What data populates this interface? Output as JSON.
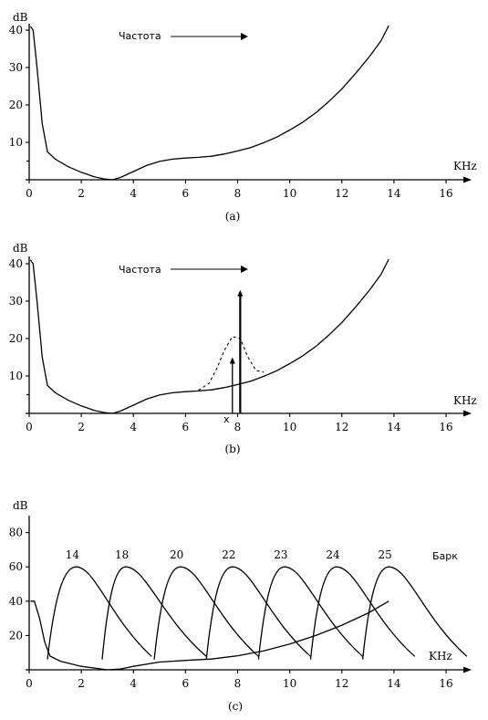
{
  "chart_data": [
    {
      "id": "a",
      "type": "line",
      "caption": "(a)",
      "ylabel": "dB",
      "xlabel": "KHz",
      "annotation": "Частота",
      "xlim": [
        0,
        16
      ],
      "ylim": [
        0,
        42
      ],
      "x_ticks": [
        0,
        2,
        4,
        6,
        8,
        10,
        12,
        14,
        16
      ],
      "y_ticks": [
        10,
        20,
        30,
        40
      ],
      "series": [
        {
          "x": [
            0.05,
            0.15,
            0.3,
            0.5,
            0.7,
            1.0,
            1.5,
            2.0,
            2.5,
            2.9,
            3.2,
            3.5,
            4.0,
            4.5,
            5.0,
            5.5,
            6.0,
            6.5,
            7.0,
            7.5,
            8.0,
            8.5,
            9.0,
            9.5,
            10.0,
            10.5,
            11.0,
            11.5,
            12.0,
            12.5,
            13.0,
            13.5,
            13.8
          ],
          "y": [
            41,
            40,
            30,
            15,
            7.5,
            5.5,
            3.5,
            2.0,
            0.8,
            0.2,
            0.0,
            0.6,
            2.2,
            3.8,
            4.9,
            5.5,
            5.8,
            6.0,
            6.3,
            6.9,
            7.7,
            8.6,
            9.9,
            11.4,
            13.3,
            15.4,
            17.9,
            20.9,
            24.3,
            28.2,
            32.4,
            37.1,
            41.2
          ]
        }
      ]
    },
    {
      "id": "b",
      "type": "line",
      "caption": "(b)",
      "ylabel": "dB",
      "xlabel": "KHz",
      "annotation": "Частота",
      "marker_label": "x",
      "xlim": [
        0,
        16
      ],
      "ylim": [
        0,
        42
      ],
      "x_ticks": [
        0,
        2,
        4,
        6,
        8,
        10,
        12,
        14,
        16
      ],
      "y_ticks": [
        10,
        20,
        30,
        40
      ],
      "series": [
        {
          "x": [
            0.05,
            0.15,
            0.3,
            0.5,
            0.7,
            1.0,
            1.5,
            2.0,
            2.5,
            2.9,
            3.2,
            3.5,
            4.0,
            4.5,
            5.0,
            5.5,
            6.0,
            6.5,
            7.0,
            7.5,
            8.0,
            8.5,
            9.0,
            9.5,
            10.0,
            10.5,
            11.0,
            11.5,
            12.0,
            12.5,
            13.0,
            13.5,
            13.8
          ],
          "y": [
            41,
            40,
            30,
            15,
            7.5,
            5.5,
            3.5,
            2.0,
            0.8,
            0.2,
            0.0,
            0.6,
            2.2,
            3.8,
            4.9,
            5.5,
            5.8,
            6.0,
            6.3,
            6.9,
            7.7,
            8.6,
            9.9,
            11.4,
            13.3,
            15.4,
            17.9,
            20.9,
            24.3,
            28.2,
            32.4,
            37.1,
            41.2
          ]
        },
        {
          "style": "dashed",
          "x": [
            6.5,
            6.9,
            7.2,
            7.5,
            7.8,
            8.1,
            8.4,
            8.7,
            9.0
          ],
          "y": [
            6.2,
            8.0,
            12.0,
            17.0,
            20.5,
            20.0,
            15.0,
            11.5,
            11.0
          ]
        }
      ],
      "spikes": [
        {
          "x": 7.8,
          "y": 15
        },
        {
          "x": 8.1,
          "y": 33
        }
      ]
    },
    {
      "id": "c",
      "type": "line",
      "caption": "(c)",
      "ylabel": "dB",
      "xlabel": "KHz",
      "units_label": "Барк",
      "xlim": [
        0,
        16
      ],
      "ylim": [
        0,
        90
      ],
      "x_ticks": [
        0,
        2,
        4,
        6,
        8,
        10,
        12,
        14,
        16
      ],
      "y_ticks": [
        20,
        40,
        60,
        80
      ],
      "threshold": {
        "x": [
          0.05,
          0.2,
          0.4,
          0.6,
          0.8,
          1.2,
          2.0,
          3.0,
          3.5,
          4.0,
          5.0,
          6.0,
          7.0,
          8.0,
          9.0,
          10.0,
          11.0,
          12.0,
          13.0,
          13.8
        ],
        "y": [
          40,
          40,
          30,
          16,
          8,
          5,
          2,
          0,
          0.5,
          2,
          4.5,
          5.5,
          6.3,
          8.2,
          11,
          15,
          20,
          26,
          33,
          40
        ]
      },
      "bands": [
        {
          "label": "14",
          "start": 0.7,
          "peak": 1.8,
          "end": 4.7
        },
        {
          "label": "18",
          "start": 2.8,
          "peak": 3.7,
          "end": 6.8
        },
        {
          "label": "20",
          "start": 4.8,
          "peak": 5.8,
          "end": 8.8
        },
        {
          "label": "22",
          "start": 6.8,
          "peak": 7.8,
          "end": 10.8
        },
        {
          "label": "23",
          "start": 8.8,
          "peak": 9.8,
          "end": 12.8
        },
        {
          "label": "24",
          "start": 10.8,
          "peak": 11.8,
          "end": 14.8
        },
        {
          "label": "25",
          "start": 12.8,
          "peak": 13.8,
          "end": 16.8
        }
      ],
      "band_peak_db": 60
    }
  ]
}
